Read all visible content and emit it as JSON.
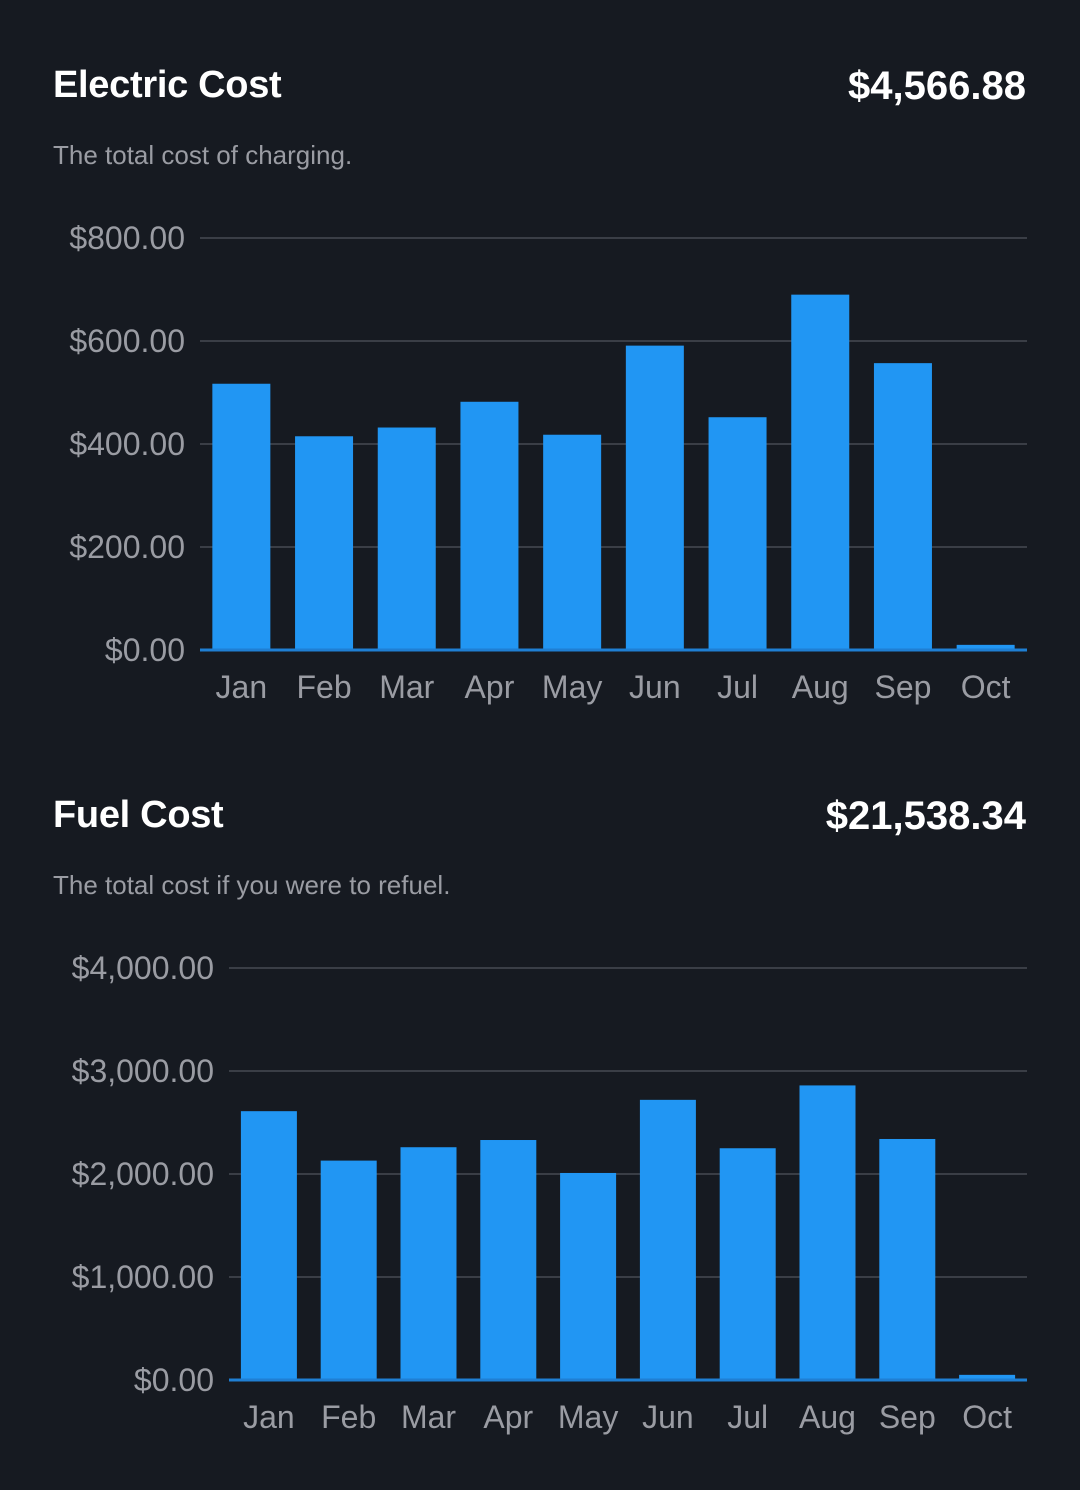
{
  "electric": {
    "title": "Electric Cost",
    "total": "$4,566.88",
    "subtitle": "The total cost of charging."
  },
  "fuel": {
    "title": "Fuel Cost",
    "total": "$21,538.34",
    "subtitle": "The total cost if you were to refuel."
  },
  "chart_data": [
    {
      "type": "bar",
      "title": "Electric Cost",
      "categories": [
        "Jan",
        "Feb",
        "Mar",
        "Apr",
        "May",
        "Jun",
        "Jul",
        "Aug",
        "Sep",
        "Oct"
      ],
      "values": [
        517,
        415,
        432,
        482,
        418,
        591,
        452,
        690,
        557,
        10
      ],
      "y_ticks": [
        0,
        200,
        400,
        600,
        800
      ],
      "y_tick_labels": [
        "$0.00",
        "$200.00",
        "$400.00",
        "$600.00",
        "$800.00"
      ],
      "ylim": [
        0,
        800
      ],
      "xlabel": "",
      "ylabel": "",
      "color": "#2196f3",
      "grid": true
    },
    {
      "type": "bar",
      "title": "Fuel Cost",
      "categories": [
        "Jan",
        "Feb",
        "Mar",
        "Apr",
        "May",
        "Jun",
        "Jul",
        "Aug",
        "Sep",
        "Oct"
      ],
      "values": [
        2610,
        2130,
        2260,
        2330,
        2010,
        2720,
        2250,
        2860,
        2340,
        50
      ],
      "y_ticks": [
        0,
        1000,
        2000,
        3000,
        4000
      ],
      "y_tick_labels": [
        "$0.00",
        "$1,000.00",
        "$2,000.00",
        "$3,000.00",
        "$4,000.00"
      ],
      "ylim": [
        0,
        4000
      ],
      "xlabel": "",
      "ylabel": "",
      "color": "#2196f3",
      "grid": true
    }
  ]
}
